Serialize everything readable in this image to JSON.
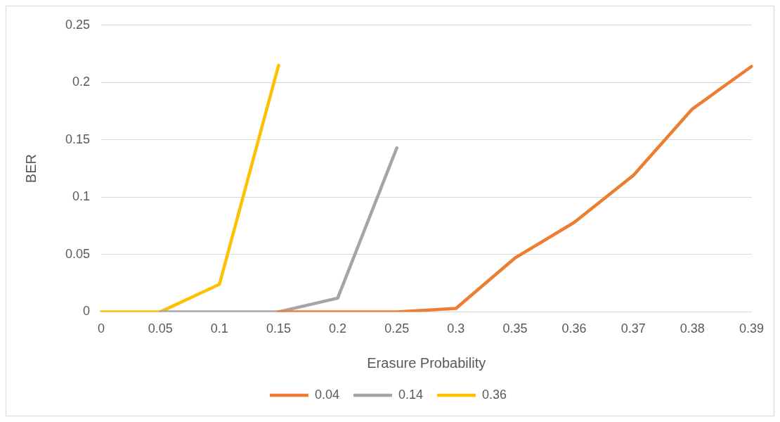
{
  "chart_data": {
    "type": "line",
    "xlabel": "Erasure Probability",
    "ylabel": "BER",
    "categories": [
      "0",
      "0.05",
      "0.1",
      "0.15",
      "0.2",
      "0.25",
      "0.3",
      "0.35",
      "0.36",
      "0.37",
      "0.38",
      "0.39"
    ],
    "series": [
      {
        "name": "0.04",
        "color": "#ed7d31",
        "values": [
          null,
          null,
          null,
          0,
          0,
          0,
          0.003,
          0.047,
          0.078,
          0.119,
          0.177,
          0.214
        ]
      },
      {
        "name": "0.14",
        "color": "#a5a5a5",
        "values": [
          null,
          0,
          0,
          0,
          0.012,
          0.143,
          null,
          null,
          null,
          null,
          null,
          null
        ]
      },
      {
        "name": "0.36",
        "color": "#ffc000",
        "values": [
          0,
          0,
          0.024,
          0.215,
          null,
          null,
          null,
          null,
          null,
          null,
          null,
          null
        ]
      }
    ],
    "ylim": [
      0,
      0.25
    ],
    "yticks": [
      0,
      0.05,
      0.1,
      0.15,
      0.2,
      0.25
    ],
    "grid": "y",
    "legend": "bottom",
    "marker": "none",
    "line_style": "solid"
  }
}
